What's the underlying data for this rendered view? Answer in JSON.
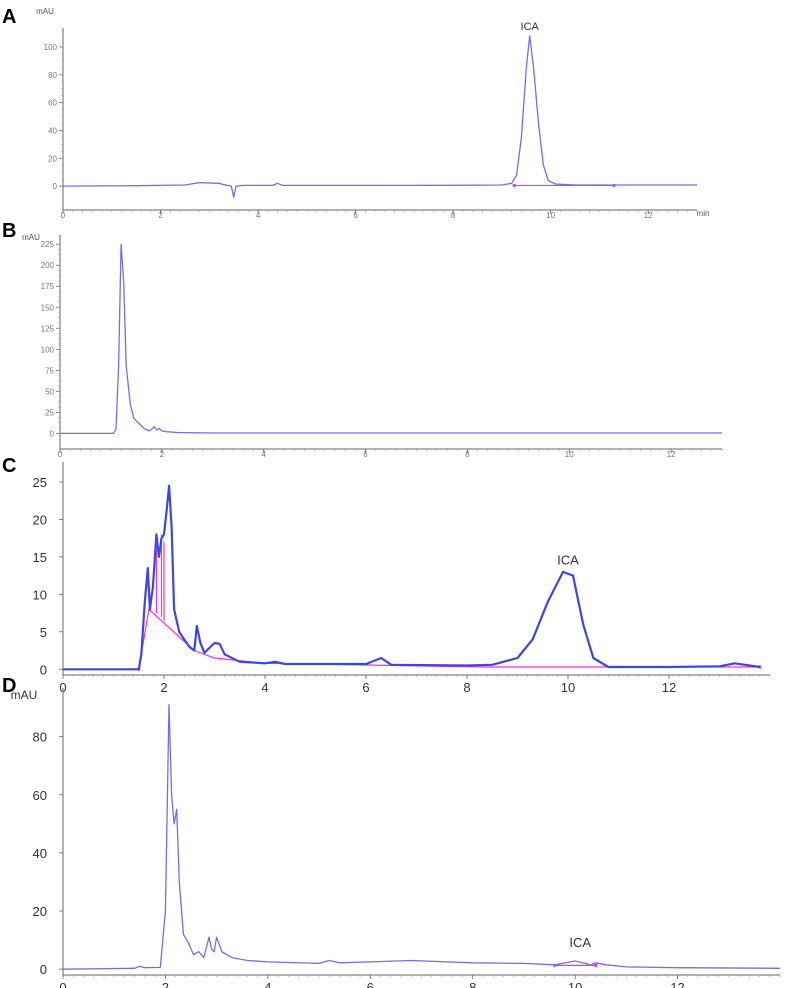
{
  "panels": [
    {
      "letter": "A"
    },
    {
      "letter": "B"
    },
    {
      "letter": "C"
    },
    {
      "letter": "D"
    }
  ],
  "colors": {
    "trace": "#6f6ff0",
    "trace_dark": "#3c46e6",
    "baseline": "#ff2ad9",
    "axis": "#666666"
  },
  "chart_data": [
    {
      "panel": "A",
      "type": "line",
      "ylabel": "mAU",
      "xlabel": "min",
      "xlim": [
        0,
        13
      ],
      "ylim": [
        -15,
        110
      ],
      "xticks": [
        0,
        2,
        4,
        6,
        8,
        10,
        12
      ],
      "xtick_labels": [
        "0",
        "2",
        "4",
        "6",
        "8",
        "10",
        "12"
      ],
      "yticks": [
        0,
        20,
        40,
        60,
        80,
        100
      ],
      "series": [
        {
          "values": [
            [
              0,
              0
            ],
            [
              1.5,
              0.3
            ],
            [
              2.5,
              0.8
            ],
            [
              2.8,
              2.5
            ],
            [
              3.2,
              2
            ],
            [
              3.3,
              1
            ],
            [
              3.45,
              0
            ],
            [
              3.5,
              -8
            ],
            [
              3.55,
              0
            ],
            [
              3.7,
              0.5
            ],
            [
              4.3,
              0.5
            ],
            [
              4.4,
              2
            ],
            [
              4.5,
              0.5
            ],
            [
              6,
              0.5
            ],
            [
              8,
              0.6
            ],
            [
              9,
              0.8
            ],
            [
              9.2,
              2
            ],
            [
              9.3,
              8
            ],
            [
              9.4,
              35
            ],
            [
              9.5,
              85
            ],
            [
              9.57,
              108
            ],
            [
              9.65,
              85
            ],
            [
              9.75,
              45
            ],
            [
              9.85,
              15
            ],
            [
              9.95,
              4
            ],
            [
              10.1,
              1.5
            ],
            [
              10.5,
              0.8
            ],
            [
              13,
              0.8
            ]
          ]
        }
      ],
      "baseline": {
        "x": [
          9.25,
          11.3
        ],
        "y": [
          0.5,
          0.5
        ]
      },
      "annotations": [
        {
          "label": "ICA",
          "x": 9.57,
          "y": 108
        }
      ]
    },
    {
      "panel": "B",
      "type": "line",
      "ylabel": "mAU",
      "xlim": [
        0,
        13
      ],
      "ylim": [
        -15,
        230
      ],
      "xticks": [
        0,
        2,
        4,
        6,
        8,
        10,
        12
      ],
      "xtick_labels": [
        "0",
        "2",
        "4",
        "6",
        "8",
        "10",
        "12"
      ],
      "yticks": [
        0,
        25,
        50,
        75,
        100,
        125,
        150,
        175,
        200,
        225
      ],
      "series": [
        {
          "values": [
            [
              0,
              0
            ],
            [
              1.05,
              0
            ],
            [
              1.1,
              5
            ],
            [
              1.15,
              80
            ],
            [
              1.2,
              225
            ],
            [
              1.25,
              180
            ],
            [
              1.3,
              80
            ],
            [
              1.38,
              35
            ],
            [
              1.45,
              18
            ],
            [
              1.55,
              12
            ],
            [
              1.65,
              6
            ],
            [
              1.75,
              3
            ],
            [
              1.8,
              5
            ],
            [
              1.85,
              8
            ],
            [
              1.9,
              4
            ],
            [
              1.95,
              6
            ],
            [
              2.0,
              3
            ],
            [
              2.1,
              2
            ],
            [
              2.3,
              1
            ],
            [
              3,
              0.5
            ],
            [
              6,
              0.5
            ],
            [
              13,
              0.5
            ]
          ]
        }
      ]
    },
    {
      "panel": "C",
      "type": "line",
      "xlim": [
        0,
        14
      ],
      "ylim": [
        -0.5,
        27
      ],
      "xticks": [
        0,
        2,
        4,
        6,
        8,
        10,
        12
      ],
      "xtick_labels": [
        "0",
        "2",
        "4",
        "6",
        "8",
        "10",
        "12"
      ],
      "yticks": [
        0,
        5,
        10,
        15,
        20,
        25
      ],
      "series": [
        {
          "values": [
            [
              0,
              0
            ],
            [
              1.5,
              0
            ],
            [
              1.55,
              2
            ],
            [
              1.62,
              9
            ],
            [
              1.68,
              13.5
            ],
            [
              1.72,
              8
            ],
            [
              1.78,
              11
            ],
            [
              1.85,
              18
            ],
            [
              1.9,
              15
            ],
            [
              1.95,
              17.5
            ],
            [
              2.0,
              18
            ],
            [
              2.05,
              21
            ],
            [
              2.1,
              24.5
            ],
            [
              2.15,
              19
            ],
            [
              2.2,
              8
            ],
            [
              2.3,
              5
            ],
            [
              2.4,
              4
            ],
            [
              2.5,
              3
            ],
            [
              2.6,
              2.5
            ],
            [
              2.65,
              5.8
            ],
            [
              2.72,
              3.5
            ],
            [
              2.8,
              2.2
            ],
            [
              3.0,
              3.5
            ],
            [
              3.1,
              3.4
            ],
            [
              3.2,
              2
            ],
            [
              3.5,
              1
            ],
            [
              4.0,
              0.8
            ],
            [
              4.2,
              1
            ],
            [
              4.4,
              0.7
            ],
            [
              5,
              0.7
            ],
            [
              6.0,
              0.7
            ],
            [
              6.3,
              1.5
            ],
            [
              6.5,
              0.6
            ],
            [
              8,
              0.5
            ],
            [
              8.5,
              0.6
            ],
            [
              9.0,
              1.5
            ],
            [
              9.3,
              4
            ],
            [
              9.6,
              9
            ],
            [
              9.9,
              13
            ],
            [
              10.1,
              12.5
            ],
            [
              10.3,
              6
            ],
            [
              10.5,
              1.5
            ],
            [
              10.8,
              0.3
            ],
            [
              12,
              0.3
            ],
            [
              13,
              0.4
            ],
            [
              13.3,
              0.8
            ],
            [
              13.8,
              0.3
            ]
          ]
        }
      ],
      "baseline": {
        "x": [
          1.5,
          1.7,
          2.6,
          3.0,
          4.0,
          8.4,
          13.8
        ],
        "y": [
          0,
          8,
          2.5,
          1.5,
          0.8,
          0.3,
          0.3
        ]
      },
      "baseline_drops": [
        [
          1.85,
          7.5,
          16
        ],
        [
          1.95,
          7,
          18
        ],
        [
          2.0,
          6.5,
          17
        ]
      ],
      "annotations": [
        {
          "label": "ICA",
          "x": 10.0,
          "y": 13.2
        }
      ]
    },
    {
      "panel": "D",
      "type": "line",
      "ylabel": "mAU",
      "xlim": [
        0,
        14
      ],
      "ylim": [
        -2,
        95
      ],
      "xticks": [
        0,
        2,
        4,
        6,
        8,
        10,
        12
      ],
      "xtick_labels": [
        "0",
        "2",
        "4",
        "6",
        "8",
        "10",
        "12"
      ],
      "yticks": [
        0,
        20,
        40,
        60,
        80
      ],
      "series": [
        {
          "values": [
            [
              0,
              0
            ],
            [
              1.4,
              0.3
            ],
            [
              1.5,
              1
            ],
            [
              1.6,
              0.5
            ],
            [
              1.9,
              0.6
            ],
            [
              2.0,
              20
            ],
            [
              2.07,
              91
            ],
            [
              2.12,
              60
            ],
            [
              2.17,
              50
            ],
            [
              2.22,
              55
            ],
            [
              2.27,
              30
            ],
            [
              2.35,
              12
            ],
            [
              2.45,
              9
            ],
            [
              2.55,
              5
            ],
            [
              2.65,
              6
            ],
            [
              2.75,
              4
            ],
            [
              2.85,
              11
            ],
            [
              2.9,
              7
            ],
            [
              2.95,
              6
            ],
            [
              3.0,
              11
            ],
            [
              3.1,
              6
            ],
            [
              3.3,
              4
            ],
            [
              3.6,
              3
            ],
            [
              4,
              2.5
            ],
            [
              5,
              2
            ],
            [
              5.2,
              3
            ],
            [
              5.4,
              2.2
            ],
            [
              6,
              2.5
            ],
            [
              6.8,
              3
            ],
            [
              7.5,
              2.5
            ],
            [
              8,
              2.2
            ],
            [
              9,
              2
            ],
            [
              9.6,
              1.5
            ],
            [
              10.0,
              2.8
            ],
            [
              10.2,
              2
            ],
            [
              10.3,
              1.4
            ],
            [
              10.4,
              2.2
            ],
            [
              10.6,
              1.5
            ],
            [
              11,
              0.8
            ],
            [
              12,
              0.5
            ],
            [
              14,
              0.3
            ]
          ]
        }
      ],
      "baseline": {
        "x": [
          9.6,
          10.4
        ],
        "y": [
          1.3,
          1.3
        ]
      },
      "annotations": [
        {
          "label": "ICA",
          "x": 10.1,
          "y": 5.5
        }
      ]
    }
  ]
}
